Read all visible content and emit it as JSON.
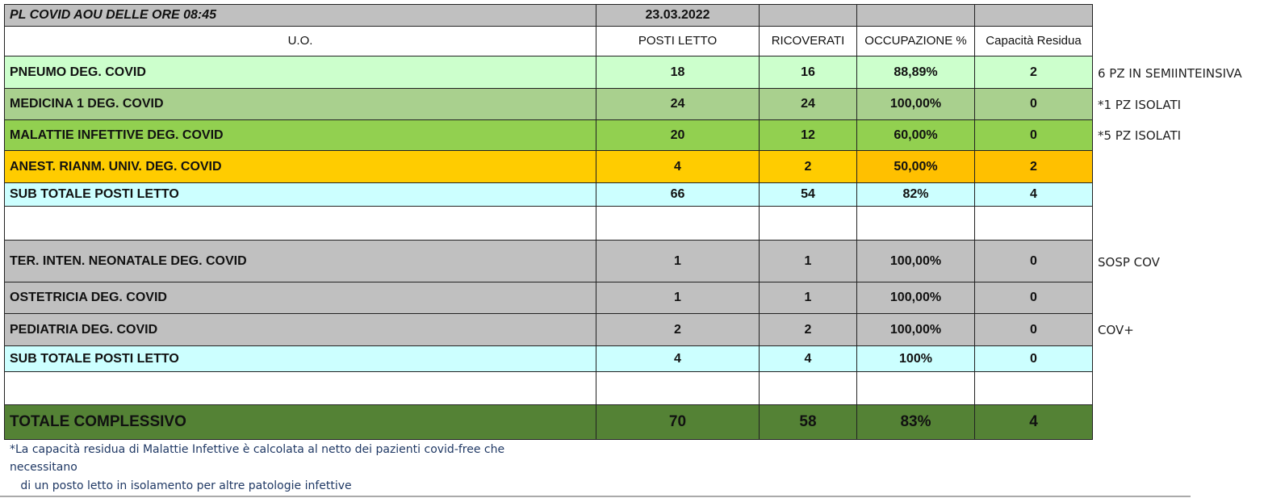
{
  "title": "PL COVID AOU DELLE ORE  08:45",
  "date": "23.03.2022",
  "headers": [
    "U.O.",
    "POSTI LETTO",
    "RICOVERATI",
    "OCCUPAZIONE %",
    "Capacità Residua"
  ],
  "rows": [
    {
      "uo": "PNEUMO  DEG. COVID",
      "posti": "18",
      "ricoverati": "16",
      "occupazione": "88,89%",
      "capacita": "2",
      "note": "6 PZ IN SEMIINTEINSIVA"
    },
    {
      "uo": "MEDICINA 1 DEG. COVID",
      "posti": "24",
      "ricoverati": "24",
      "occupazione": "100,00%",
      "capacita": "0",
      "note": "*1 PZ  ISOLATI"
    },
    {
      "uo": "MALATTIE INFETTIVE  DEG. COVID",
      "posti": "20",
      "ricoverati": "12",
      "occupazione": "60,00%",
      "capacita": "0",
      "note": "*5  PZ  ISOLATI"
    },
    {
      "uo": "ANEST. RIANM. UNIV. DEG. COVID",
      "posti": "4",
      "ricoverati": "2",
      "occupazione": "50,00%",
      "capacita": "2"
    },
    {
      "uo": "SUB TOTALE POSTI LETTO",
      "posti": "66",
      "ricoverati": "54",
      "occupazione": "82%",
      "capacita": "4"
    },
    {
      "uo": "TER. INTEN. NEONATALE DEG. COVID",
      "posti": "1",
      "ricoverati": "1",
      "occupazione": "100,00%",
      "capacita": "0",
      "note": "SOSP COV"
    },
    {
      "uo": "OSTETRICIA DEG.  COVID",
      "posti": "1",
      "ricoverati": "1",
      "occupazione": "100,00%",
      "capacita": "0"
    },
    {
      "uo": "PEDIATRIA DEG.  COVID",
      "posti": "2",
      "ricoverati": "2",
      "occupazione": "100,00%",
      "capacita": "0",
      "note": "COV+"
    },
    {
      "uo": "SUB TOTALE POSTI LETTO",
      "posti": "4",
      "ricoverati": "4",
      "occupazione": "100%",
      "capacita": "0"
    },
    {
      "uo": "TOTALE  COMPLESSIVO",
      "posti": "70",
      "ricoverati": "58",
      "occupazione": "83%",
      "capacita": "4"
    }
  ],
  "footnote": [
    "*La capacità residua di Malattie Infettive è calcolata al netto dei pazienti covid-free che",
    "necessitano",
    "   di un posto letto in isolamento per altre patologie infettive"
  ],
  "colors": {
    "header": "#c0c0c0",
    "pneumo": "#ccffcc",
    "medicina": "#a9d08e",
    "malattie": "#92d050",
    "anest": "#ffcc00",
    "subtotal": "#ccffff",
    "total": "#548235"
  }
}
